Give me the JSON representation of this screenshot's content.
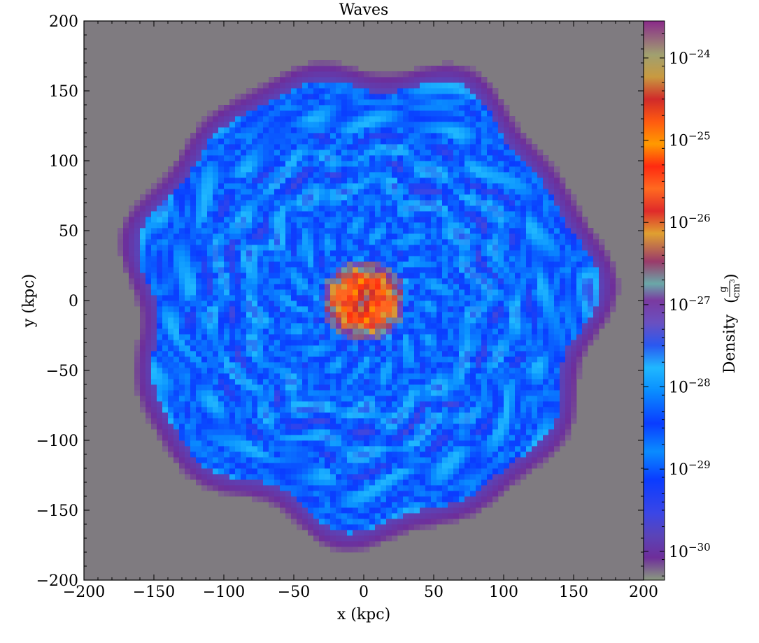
{
  "chart_data": {
    "type": "heatmap",
    "title": "Waves",
    "xlabel": "x  (kpc)",
    "ylabel": "y  (kpc)",
    "xlim": [
      -200,
      200
    ],
    "ylim": [
      -200,
      200
    ],
    "xticks": [
      -200,
      -150,
      -100,
      -50,
      0,
      50,
      100,
      150,
      200
    ],
    "yticks": [
      -200,
      -150,
      -100,
      -50,
      0,
      50,
      100,
      150,
      200
    ],
    "xtick_labels": [
      "−200",
      "−150",
      "−100",
      "−50",
      "0",
      "50",
      "100",
      "150",
      "200"
    ],
    "ytick_labels": [
      "−200",
      "−150",
      "−100",
      "−50",
      "0",
      "50",
      "100",
      "150",
      "200"
    ],
    "background_color": "#7f7b80",
    "grid": false,
    "colorbar": {
      "label": "Density",
      "unit_numerator": "g",
      "unit_denominator": "cm",
      "unit_denominator_exponent": "3",
      "scale": "log",
      "range_exponent": [
        -30.35,
        -23.55
      ],
      "ticks": [
        {
          "base": "10",
          "exponent": "−24",
          "value": -24
        },
        {
          "base": "10",
          "exponent": "−25",
          "value": -25
        },
        {
          "base": "10",
          "exponent": "−26",
          "value": -26
        },
        {
          "base": "10",
          "exponent": "−27",
          "value": -27
        },
        {
          "base": "10",
          "exponent": "−28",
          "value": -28
        },
        {
          "base": "10",
          "exponent": "−29",
          "value": -29
        },
        {
          "base": "10",
          "exponent": "−30",
          "value": -30
        }
      ]
    },
    "density_field": {
      "edge_radius_kpc": 172,
      "core_radius_kpc": 30,
      "shell_radii_kpc": [
        38,
        65,
        95,
        120,
        148
      ],
      "cell_size_kpc": 4
    }
  }
}
